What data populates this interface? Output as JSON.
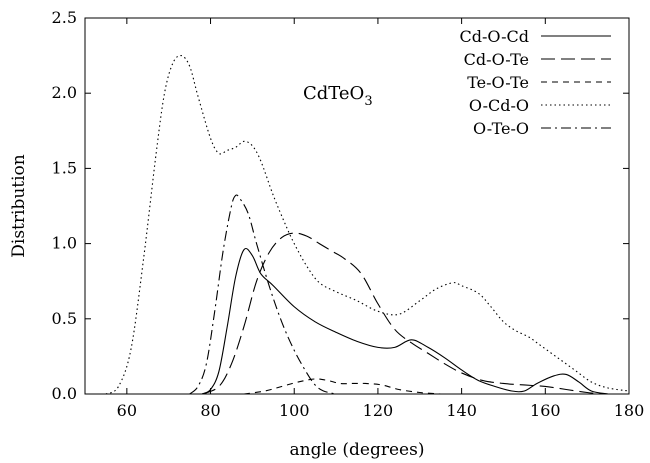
{
  "chart_data": {
    "type": "line",
    "title": "",
    "annotation": {
      "main": "CdTeO",
      "sub": "3"
    },
    "xlabel": "angle (degrees)",
    "ylabel": "Distribution",
    "xlim": [
      50,
      180
    ],
    "ylim": [
      0,
      2.5
    ],
    "xticks": [
      "60",
      "80",
      "100",
      "120",
      "140",
      "160",
      "180"
    ],
    "yticks": [
      "0.0",
      "0.5",
      "1.0",
      "1.5",
      "2.0",
      "2.5"
    ],
    "grid": false,
    "legend_position": "top-right",
    "series": [
      {
        "name": "Cd-O-Cd",
        "dash": "solid",
        "x": [
          78,
          80,
          82,
          84,
          86,
          88,
          90,
          92,
          95,
          100,
          105,
          110,
          115,
          120,
          124,
          128,
          132,
          136,
          140,
          144,
          148,
          152,
          155,
          158,
          162,
          165,
          168,
          171,
          175
        ],
        "y": [
          0.0,
          0.03,
          0.15,
          0.45,
          0.78,
          0.96,
          0.92,
          0.8,
          0.72,
          0.58,
          0.48,
          0.41,
          0.35,
          0.31,
          0.31,
          0.36,
          0.31,
          0.24,
          0.16,
          0.09,
          0.05,
          0.02,
          0.02,
          0.07,
          0.12,
          0.13,
          0.08,
          0.02,
          0.0
        ]
      },
      {
        "name": "Cd-O-Te",
        "dash": "long-dash",
        "x": [
          78,
          82,
          85,
          88,
          91,
          94,
          97,
          100,
          103,
          106,
          109,
          112,
          116,
          120,
          124,
          128,
          132,
          136,
          140,
          145,
          150,
          155,
          160,
          165,
          170,
          174
        ],
        "y": [
          0.0,
          0.05,
          0.2,
          0.45,
          0.75,
          0.94,
          1.04,
          1.07,
          1.05,
          1.0,
          0.95,
          0.9,
          0.8,
          0.6,
          0.43,
          0.34,
          0.27,
          0.2,
          0.14,
          0.09,
          0.07,
          0.06,
          0.05,
          0.03,
          0.01,
          0.0
        ]
      },
      {
        "name": "Te-O-Te",
        "dash": "medium-dash",
        "x": [
          88,
          93,
          97,
          101,
          105,
          108,
          111,
          114,
          117,
          121,
          125,
          130,
          135
        ],
        "y": [
          0.0,
          0.02,
          0.05,
          0.08,
          0.1,
          0.09,
          0.07,
          0.07,
          0.07,
          0.06,
          0.03,
          0.01,
          0.0
        ]
      },
      {
        "name": "O-Cd-O",
        "dash": "dotted",
        "x": [
          55,
          58,
          61,
          64,
          67,
          69,
          71,
          73,
          75,
          77,
          80,
          82,
          84,
          86,
          88,
          90,
          92,
          95,
          98,
          100,
          103,
          106,
          110,
          115,
          120,
          125,
          130,
          134,
          138,
          140,
          144,
          147,
          150,
          153,
          156,
          159,
          163,
          167,
          171,
          175,
          180
        ],
        "y": [
          0.0,
          0.05,
          0.3,
          0.9,
          1.6,
          2.0,
          2.2,
          2.25,
          2.18,
          1.98,
          1.7,
          1.6,
          1.62,
          1.64,
          1.68,
          1.65,
          1.55,
          1.32,
          1.12,
          1.0,
          0.85,
          0.74,
          0.68,
          0.62,
          0.55,
          0.53,
          0.62,
          0.7,
          0.74,
          0.72,
          0.67,
          0.58,
          0.48,
          0.42,
          0.38,
          0.32,
          0.24,
          0.16,
          0.08,
          0.04,
          0.02
        ]
      },
      {
        "name": "O-Te-O",
        "dash": "dash-dot",
        "x": [
          75,
          77,
          79,
          81,
          83,
          85,
          86,
          87,
          89,
          91,
          94,
          97,
          100,
          103,
          105,
          107,
          110
        ],
        "y": [
          0.0,
          0.05,
          0.2,
          0.55,
          0.95,
          1.25,
          1.32,
          1.3,
          1.2,
          1.0,
          0.72,
          0.48,
          0.29,
          0.14,
          0.06,
          0.02,
          0.0
        ]
      }
    ]
  }
}
